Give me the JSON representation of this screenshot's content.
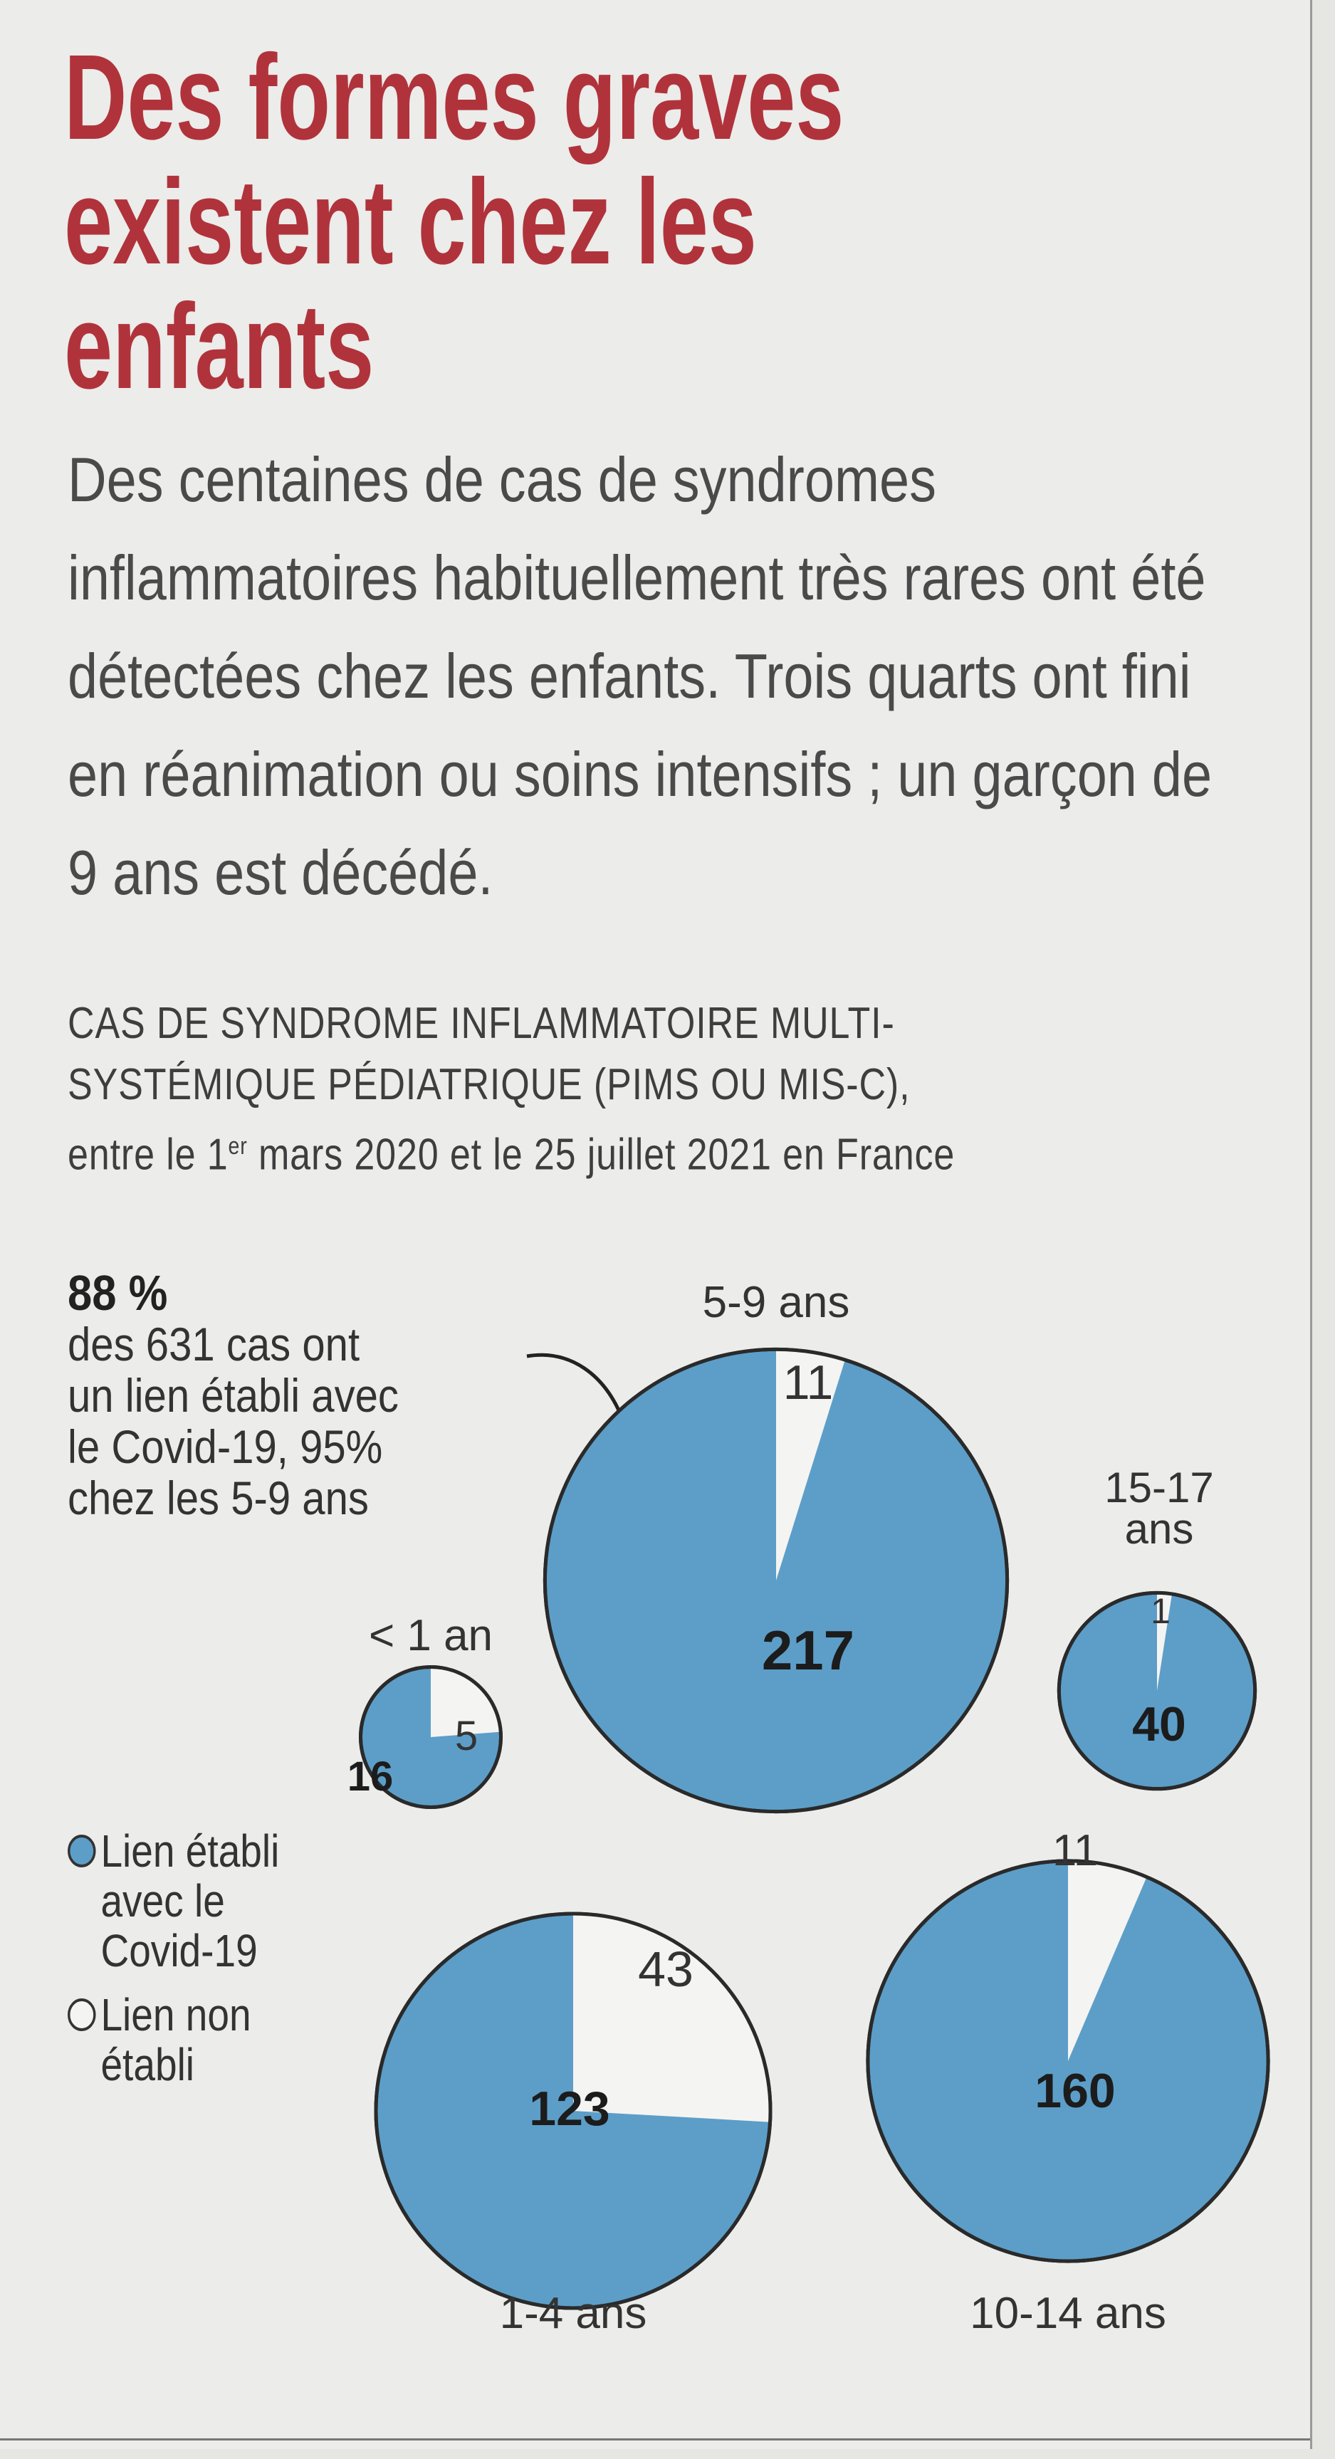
{
  "title_lines": [
    "Des formes graves",
    "existent chez les enfants"
  ],
  "lead": "Des centaines de cas de syndromes inflammatoires habituellement très rares ont été détectées chez les enfants. Trois quarts ont fini en réanimation ou soins intensifs ; un garçon de 9 ans est décédé.",
  "subhead": {
    "line1": "CAS DE SYNDROME INFLAMMATOIRE MULTI-",
    "line2": "SYSTÉMIQUE PÉDIATRIQUE (PIMS OU MIS-C),",
    "line3_pre": "entre le 1",
    "line3_sup": "er",
    "line3_post": " mars 2020 et le 25 juillet 2021 en France"
  },
  "callout": {
    "pct": "88 %",
    "text_lines": [
      "des 631 cas ont",
      "un lien établi avec",
      "le Covid-19, 95%",
      "chez les 5-9 ans"
    ]
  },
  "legend": {
    "linked": "Lien établi avec le Covid-19",
    "not_linked": "Lien non établi"
  },
  "colors": {
    "linked": "#5c9ec8",
    "not_linked": "#f4f4f2",
    "title": "#b0333b",
    "outline": "#2a2a2a"
  },
  "chart_data": {
    "type": "pie",
    "title": "CAS DE SYNDROME INFLAMMATOIRE MULTI-SYSTÉMIQUE PÉDIATRIQUE (PIMS OU MIS-C), entre le 1er mars 2020 et le 25 juillet 2021 en France",
    "series_names": [
      "Lien établi avec le Covid-19",
      "Lien non établi"
    ],
    "groups": [
      {
        "age": "< 1 an",
        "linked": 16,
        "not_linked": 5
      },
      {
        "age": "1-4 ans",
        "linked": 123,
        "not_linked": 43
      },
      {
        "age": "5-9 ans",
        "linked": 217,
        "not_linked": 11
      },
      {
        "age": "10-14 ans",
        "linked": 160,
        "not_linked": 11
      },
      {
        "age": "15-17 ans",
        "linked": 40,
        "not_linked": 1
      }
    ]
  }
}
